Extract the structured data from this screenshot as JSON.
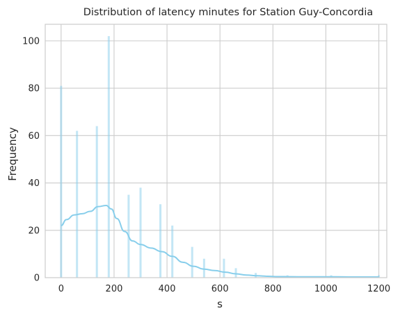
{
  "chart_data": {
    "type": "bar",
    "title": "Distribution of latency minutes for Station Guy-Concordia",
    "xlabel": "s",
    "ylabel": "Frequency",
    "xlim": [
      -60,
      1230
    ],
    "ylim": [
      0,
      107
    ],
    "xticks": [
      0,
      200,
      400,
      600,
      800,
      1000,
      1200
    ],
    "yticks": [
      0,
      20,
      40,
      60,
      80,
      100
    ],
    "grid": true,
    "bins": [
      {
        "x": 0,
        "value": 81
      },
      {
        "x": 60,
        "value": 62
      },
      {
        "x": 135,
        "value": 64
      },
      {
        "x": 180,
        "value": 102
      },
      {
        "x": 255,
        "value": 35
      },
      {
        "x": 300,
        "value": 38
      },
      {
        "x": 375,
        "value": 31
      },
      {
        "x": 420,
        "value": 22
      },
      {
        "x": 495,
        "value": 13
      },
      {
        "x": 540,
        "value": 8
      },
      {
        "x": 615,
        "value": 8
      },
      {
        "x": 660,
        "value": 4
      },
      {
        "x": 735,
        "value": 2
      },
      {
        "x": 855,
        "value": 1
      },
      {
        "x": 1020,
        "value": 1
      },
      {
        "x": 1200,
        "value": 1
      }
    ],
    "bin_width": 22,
    "kde": {
      "x": [
        0,
        20,
        50,
        80,
        110,
        140,
        170,
        190,
        210,
        240,
        270,
        300,
        340,
        380,
        420,
        460,
        500,
        540,
        580,
        620,
        660,
        700,
        740,
        780,
        820,
        870,
        920,
        980,
        1040,
        1100,
        1160,
        1200
      ],
      "y": [
        22,
        24.5,
        26.5,
        27,
        28,
        30,
        30.5,
        29,
        25,
        19.5,
        15.5,
        14,
        12.5,
        11,
        9,
        6.5,
        4.8,
        3.6,
        3,
        2.3,
        1.6,
        1.1,
        0.8,
        0.6,
        0.45,
        0.4,
        0.35,
        0.35,
        0.35,
        0.3,
        0.3,
        0.3
      ]
    },
    "colors": {
      "bar_fill": "#87ceeb",
      "bar_opacity": 0.5,
      "kde_line": "#87ceeb",
      "grid": "#cccccc",
      "axes_edge": "#cccccc"
    }
  }
}
